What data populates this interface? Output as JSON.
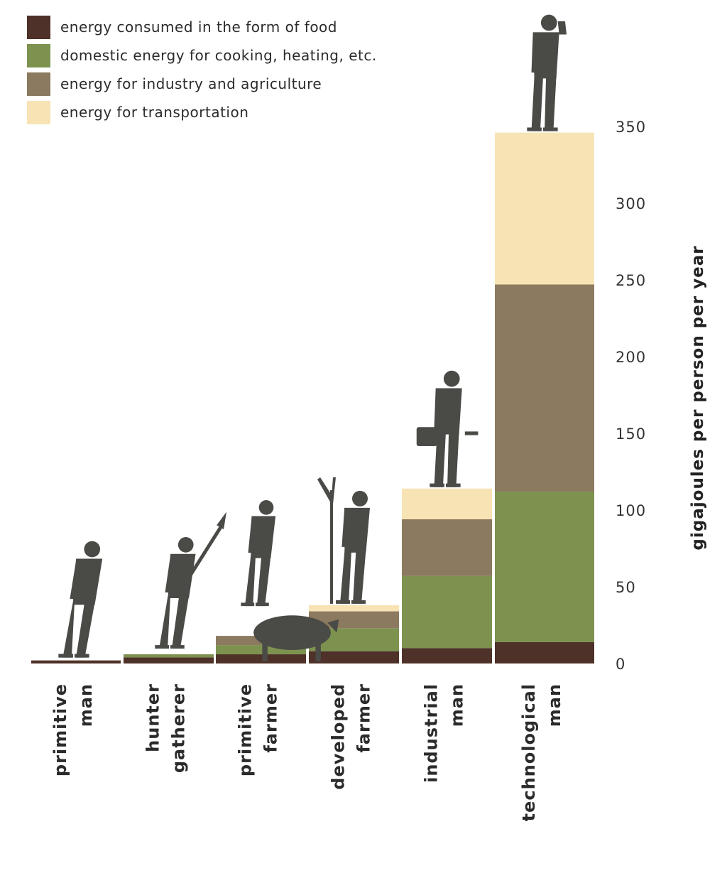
{
  "chart_data": {
    "type": "bar",
    "stacked": true,
    "categories": [
      [
        "primitive",
        "man"
      ],
      [
        "hunter",
        "gatherer"
      ],
      [
        "primitive",
        "farmer"
      ],
      [
        "developed",
        "farmer"
      ],
      [
        "industrial",
        "man"
      ],
      [
        "technological",
        "man"
      ]
    ],
    "series": [
      {
        "name": "energy consumed in the form of food",
        "color": "#4e3128",
        "values": [
          2,
          4,
          6,
          8,
          10,
          14
        ]
      },
      {
        "name": "domestic energy for cooking, heating, etc.",
        "color": "#7d924f",
        "values": [
          0,
          2,
          6,
          15,
          47,
          98
        ]
      },
      {
        "name": "energy for industry and agriculture",
        "color": "#8b7a5f",
        "values": [
          0,
          0,
          6,
          11,
          37,
          135
        ]
      },
      {
        "name": "energy for transportation",
        "color": "#f7e3b4",
        "values": [
          0,
          0,
          0,
          4,
          20,
          99
        ]
      }
    ],
    "totals": [
      2,
      6,
      18,
      38,
      114,
      346
    ],
    "ylabel": "gigajoules per person per year",
    "yticks": [
      0,
      50,
      100,
      150,
      200,
      250,
      300,
      350
    ],
    "ylim": [
      0,
      350
    ],
    "axis_side": "right",
    "legend_position": "top-left",
    "grid": false,
    "figures": [
      "primitive-man-icon",
      "hunter-gatherer-icon",
      "primitive-farmer-icon",
      "developed-farmer-icon",
      "industrial-man-icon",
      "technological-man-icon"
    ],
    "figure_color": "#4a4a47"
  }
}
